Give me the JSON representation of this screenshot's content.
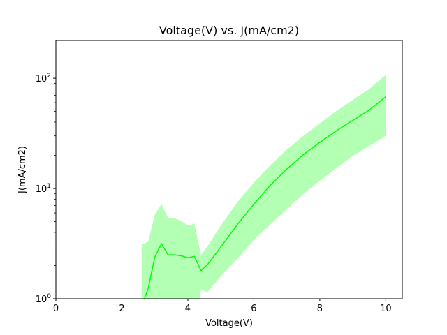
{
  "chart_data": {
    "type": "line",
    "title": "Voltage(V) vs. J(mA/cm2)",
    "xlabel": "Voltage(V)",
    "ylabel": "J(mA/cm2)",
    "xlim": [
      0,
      10.5
    ],
    "ylim": [
      1,
      220
    ],
    "yscale": "log",
    "grid": false,
    "xticks": [
      0,
      2,
      4,
      6,
      8,
      10
    ],
    "yticks": [
      {
        "value": 1,
        "base": "10",
        "exp": "0"
      },
      {
        "value": 10,
        "base": "10",
        "exp": "1"
      },
      {
        "value": 100,
        "base": "10",
        "exp": "2"
      }
    ],
    "colors": {
      "line": "#00ff00",
      "band": "#b3ffb3"
    },
    "series": [
      {
        "x": [
          2.6,
          2.8,
          3.0,
          3.2,
          3.4,
          3.6,
          3.8,
          4.0,
          4.2,
          4.4,
          4.6,
          5.0,
          5.5,
          6.0,
          6.5,
          7.0,
          7.5,
          8.0,
          8.5,
          9.0,
          9.5,
          10.0
        ],
        "mean": [
          0.85,
          1.25,
          2.4,
          3.15,
          2.5,
          2.5,
          2.45,
          2.35,
          2.42,
          1.8,
          2.05,
          2.95,
          4.7,
          7.2,
          10.7,
          15.0,
          20.3,
          26.2,
          33.3,
          41.5,
          51.5,
          68.0
        ],
        "lower": [
          0.5,
          0.5,
          0.5,
          0.5,
          0.5,
          0.5,
          0.5,
          0.5,
          0.5,
          1.2,
          1.15,
          1.6,
          2.3,
          3.4,
          4.7,
          6.5,
          8.9,
          11.7,
          15.3,
          19.8,
          24.3,
          30.0
        ],
        "upper": [
          3.1,
          3.3,
          5.8,
          7.2,
          5.4,
          5.35,
          5.1,
          4.6,
          4.8,
          2.5,
          3.0,
          4.6,
          7.5,
          11.3,
          16.2,
          22.5,
          30.0,
          39.0,
          50.5,
          63.5,
          80.0,
          107.0
        ]
      }
    ]
  }
}
